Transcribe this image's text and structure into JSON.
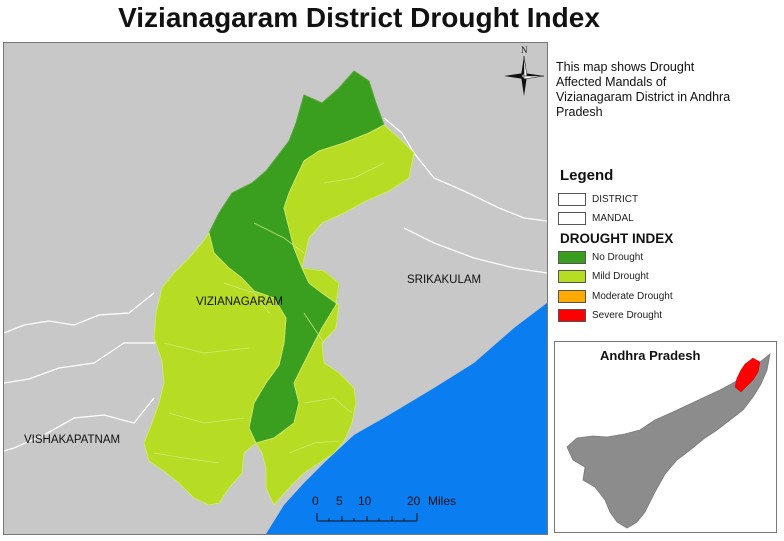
{
  "title": "Vizianagaram District Drought Index",
  "description": "This map shows Drought Affected Mandals of Vizianagaram District in Andhra Pradesh",
  "north_arrow_letter": "N",
  "map_labels": {
    "vizianagaram": "VIZIANAGARAM",
    "srikakulam": "SRIKAKULAM",
    "vishakapatnam": "VISHAKAPATNAM"
  },
  "scalebar": {
    "ticks": [
      "0",
      "5",
      "10",
      "20"
    ],
    "unit": "Miles"
  },
  "legend": {
    "title": "Legend",
    "boundaries": [
      {
        "label": "DISTRICT",
        "color": "#ffffff"
      },
      {
        "label": "MANDAL",
        "color": "#ffffff"
      }
    ],
    "drought_title": "DROUGHT INDEX",
    "classes": [
      {
        "label": "No Drought",
        "color": "#3a9e1e"
      },
      {
        "label": "Mild Drought",
        "color": "#b6dc23"
      },
      {
        "label": "Moderate Drought",
        "color": "#ffaa00"
      },
      {
        "label": "Severe Drought",
        "color": "#ff0000"
      }
    ]
  },
  "inset": {
    "title": "Andhra Pradesh",
    "state_color": "#8c8c8c",
    "highlight_color": "#ff0000"
  },
  "colors": {
    "land": "#c8c8c8",
    "sea": "#0a7df0",
    "no_drought": "#3a9e1e",
    "mild_drought": "#b6dc23"
  }
}
